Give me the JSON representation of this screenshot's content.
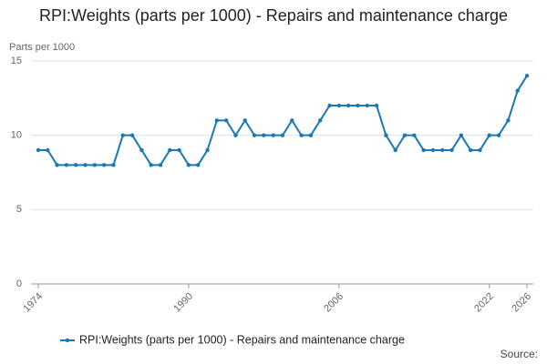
{
  "chart_data": {
    "type": "line",
    "title": "RPI:Weights (parts per 1000) - Repairs and maintenance charge",
    "y_label": "Parts per 1000",
    "source": "Source:",
    "x": [
      1974,
      1975,
      1976,
      1977,
      1978,
      1979,
      1980,
      1981,
      1982,
      1983,
      1984,
      1985,
      1986,
      1987,
      1988,
      1989,
      1990,
      1991,
      1992,
      1993,
      1994,
      1995,
      1996,
      1997,
      1998,
      1999,
      2000,
      2001,
      2002,
      2003,
      2004,
      2005,
      2006,
      2007,
      2008,
      2009,
      2010,
      2011,
      2012,
      2013,
      2014,
      2015,
      2016,
      2017,
      2018,
      2019,
      2020,
      2021,
      2022,
      2023,
      2024,
      2025,
      2026
    ],
    "series": [
      {
        "name": "RPI:Weights (parts per 1000) - Repairs and maintenance charge",
        "color": "#1a78b4",
        "values": [
          9,
          9,
          8,
          8,
          8,
          8,
          8,
          8,
          8,
          10,
          10,
          9,
          8,
          8,
          9,
          9,
          8,
          8,
          9,
          11,
          11,
          10,
          11,
          10,
          10,
          10,
          10,
          11,
          10,
          10,
          11,
          12,
          12,
          12,
          12,
          12,
          12,
          10,
          9,
          10,
          10,
          9,
          9,
          9,
          9,
          10,
          9,
          9,
          10,
          10,
          11,
          13,
          14
        ]
      }
    ],
    "xlim": [
      1974,
      2026
    ],
    "xticks": [
      1974,
      1990,
      2006,
      2022,
      2026
    ],
    "ylim": [
      0,
      15
    ],
    "yticks": [
      0,
      5,
      10,
      15
    ],
    "grid": true
  }
}
